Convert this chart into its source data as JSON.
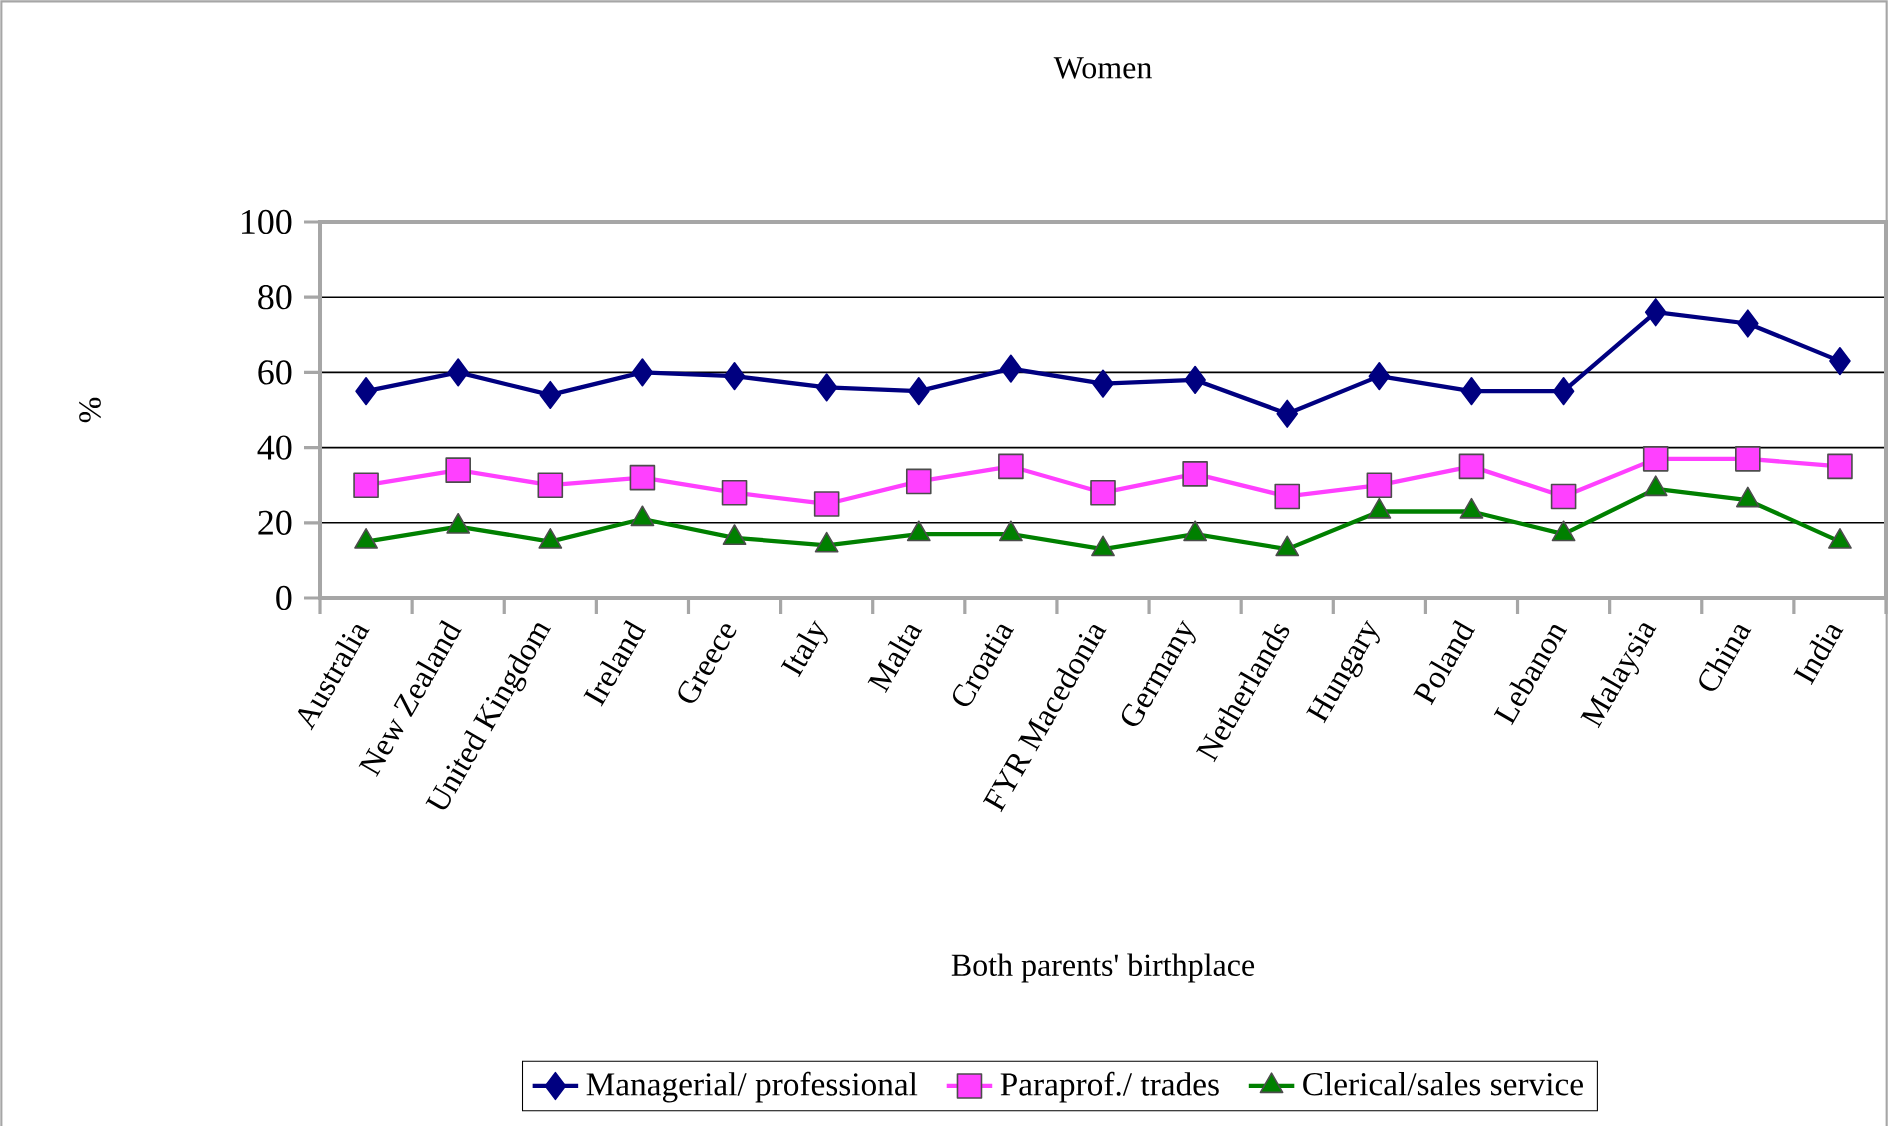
{
  "chart_data": {
    "type": "line",
    "title": "Women",
    "xlabel": "Both parents' birthplace",
    "ylabel": "%",
    "categories": [
      "Australia",
      "New Zealand",
      "United Kingdom",
      "Ireland",
      "Greece",
      "Italy",
      "Malta",
      "Croatia",
      "FYR Macedonia",
      "Germany",
      "Netherlands",
      "Hungary",
      "Poland",
      "Lebanon",
      "Malaysia",
      "China",
      "India"
    ],
    "series": [
      {
        "name": "Managerial/ professional",
        "color": "#000080",
        "marker": "diamond",
        "values": [
          55,
          60,
          54,
          60,
          59,
          56,
          55,
          61,
          57,
          58,
          49,
          59,
          55,
          55,
          76,
          73,
          63
        ]
      },
      {
        "name": "Paraprof./ trades",
        "color": "#ff40ff",
        "marker": "square",
        "values": [
          30,
          34,
          30,
          32,
          28,
          25,
          31,
          35,
          28,
          33,
          27,
          30,
          35,
          27,
          37,
          37,
          35
        ]
      },
      {
        "name": "Clerical/sales service",
        "color": "#008000",
        "marker": "triangle",
        "values": [
          15,
          19,
          15,
          21,
          16,
          14,
          17,
          17,
          13,
          17,
          13,
          23,
          23,
          17,
          29,
          26,
          15
        ]
      }
    ],
    "ylim": [
      0,
      100
    ],
    "yticks": [
      0,
      20,
      40,
      60,
      80,
      100
    ],
    "grid": "y",
    "legend": "bottom",
    "line_style": "solid"
  }
}
